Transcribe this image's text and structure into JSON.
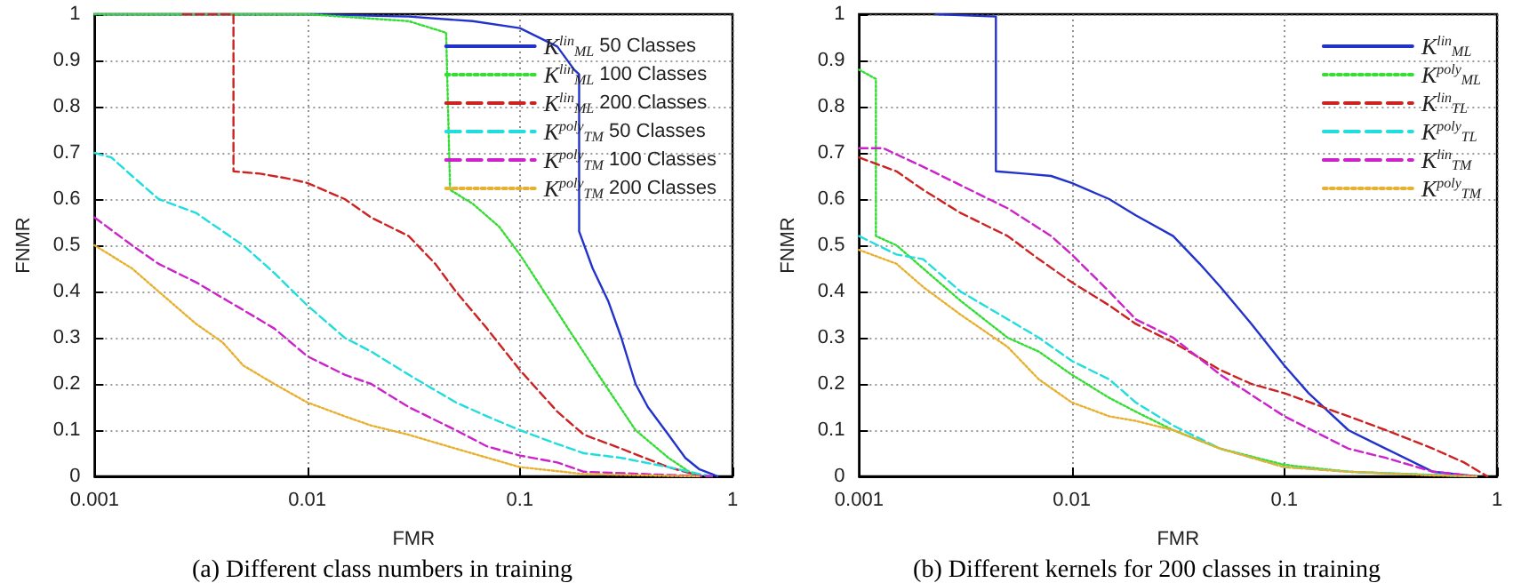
{
  "chart_data": [
    {
      "type": "line",
      "xlabel": "FMR",
      "ylabel": "FNMR",
      "annotations": [
        "(a) Different class numbers in training"
      ],
      "log": "x",
      "grid": true,
      "legend": "top right",
      "marker": "none",
      "xlim": [
        0.001,
        1
      ],
      "xticks": [
        0.001,
        0.01,
        0.1,
        1
      ],
      "ylim": [
        0,
        1
      ],
      "yticks": [
        0,
        0.1,
        0.2,
        0.3,
        0.4,
        0.5,
        0.6,
        0.7,
        0.8,
        0.9,
        1
      ],
      "series": [
        {
          "name": "K$^{lin}$$_{ML}$ 50 Classes",
          "color": "#2233cc",
          "line_style": "solid",
          "x": [
            0.001,
            0.01,
            0.03,
            0.06,
            0.1,
            0.15,
            0.18,
            0.19,
            0.19,
            0.22,
            0.26,
            0.3,
            0.35,
            0.4,
            0.5,
            0.6,
            0.7,
            0.8,
            0.85
          ],
          "values": [
            1,
            1,
            0.995,
            0.985,
            0.97,
            0.93,
            0.88,
            0.87,
            0.53,
            0.45,
            0.38,
            0.3,
            0.2,
            0.15,
            0.09,
            0.04,
            0.015,
            0.005,
            0
          ]
        },
        {
          "name": "K$^{lin}$$_{ML}$ 100 Classes",
          "color": "#33dd33",
          "line_style": "dotted",
          "x": [
            0.001,
            0.01,
            0.03,
            0.045,
            0.047,
            0.06,
            0.08,
            0.1,
            0.13,
            0.18,
            0.25,
            0.35,
            0.5,
            0.65,
            0.7
          ],
          "values": [
            1,
            1,
            0.985,
            0.96,
            0.62,
            0.59,
            0.54,
            0.48,
            0.4,
            0.3,
            0.2,
            0.1,
            0.04,
            0.005,
            0
          ]
        },
        {
          "name": "K$^{lin}$$_{ML}$ 200 Classes",
          "color": "#cc2222",
          "line_style": "dashed",
          "x": [
            0.0026,
            0.0045,
            0.0045,
            0.006,
            0.008,
            0.01,
            0.015,
            0.02,
            0.03,
            0.04,
            0.05,
            0.07,
            0.1,
            0.15,
            0.2,
            0.3,
            0.5,
            0.65,
            0.7
          ],
          "values": [
            1,
            1,
            0.66,
            0.655,
            0.645,
            0.635,
            0.6,
            0.56,
            0.52,
            0.46,
            0.4,
            0.32,
            0.23,
            0.14,
            0.09,
            0.06,
            0.02,
            0.005,
            0
          ]
        },
        {
          "name": "K$^{poly}$$_{TM}$ 50 Classes",
          "color": "#22dddd",
          "line_style": "dashed",
          "x": [
            0.001,
            0.0012,
            0.0015,
            0.002,
            0.003,
            0.005,
            0.007,
            0.01,
            0.015,
            0.02,
            0.03,
            0.05,
            0.07,
            0.1,
            0.15,
            0.2,
            0.3,
            0.5,
            0.7,
            0.8
          ],
          "values": [
            0.7,
            0.69,
            0.65,
            0.6,
            0.57,
            0.5,
            0.44,
            0.37,
            0.3,
            0.27,
            0.22,
            0.16,
            0.13,
            0.1,
            0.07,
            0.05,
            0.04,
            0.02,
            0.005,
            0
          ]
        },
        {
          "name": "K$^{poly}$$_{TM}$ 100 Classes",
          "color": "#cc22cc",
          "line_style": "dashed",
          "x": [
            0.001,
            0.0015,
            0.002,
            0.003,
            0.005,
            0.007,
            0.01,
            0.015,
            0.02,
            0.03,
            0.05,
            0.07,
            0.1,
            0.15,
            0.2,
            0.5,
            0.8
          ],
          "values": [
            0.56,
            0.5,
            0.46,
            0.42,
            0.36,
            0.32,
            0.26,
            0.22,
            0.2,
            0.15,
            0.1,
            0.065,
            0.045,
            0.03,
            0.01,
            0.003,
            0
          ]
        },
        {
          "name": "K$^{poly}$$_{TM}$ 200 Classes",
          "color": "#e8b030",
          "line_style": "dotted",
          "x": [
            0.001,
            0.0015,
            0.002,
            0.003,
            0.004,
            0.005,
            0.007,
            0.01,
            0.015,
            0.02,
            0.03,
            0.05,
            0.1,
            0.2,
            0.5,
            0.7
          ],
          "values": [
            0.5,
            0.45,
            0.4,
            0.33,
            0.29,
            0.24,
            0.2,
            0.16,
            0.13,
            0.11,
            0.09,
            0.06,
            0.02,
            0.005,
            0.001,
            0
          ]
        }
      ]
    },
    {
      "type": "line",
      "xlabel": "FMR",
      "ylabel": "FNMR",
      "annotations": [
        "(b) Different kernels for 200 classes in training"
      ],
      "log": "x",
      "grid": true,
      "legend": "top right",
      "marker": "none",
      "xlim": [
        0.001,
        1
      ],
      "xticks": [
        0.001,
        0.01,
        0.1,
        1
      ],
      "ylim": [
        0,
        1
      ],
      "yticks": [
        0,
        0.1,
        0.2,
        0.3,
        0.4,
        0.5,
        0.6,
        0.7,
        0.8,
        0.9,
        1
      ],
      "series": [
        {
          "name": "K$^{lin}$$_{ML}$",
          "color": "#2233cc",
          "line_style": "solid",
          "x": [
            0.0023,
            0.0044,
            0.0044,
            0.006,
            0.008,
            0.01,
            0.015,
            0.02,
            0.03,
            0.04,
            0.05,
            0.07,
            0.1,
            0.13,
            0.2,
            0.3,
            0.5,
            0.8
          ],
          "values": [
            1,
            0.995,
            0.66,
            0.655,
            0.65,
            0.635,
            0.6,
            0.565,
            0.52,
            0.46,
            0.41,
            0.33,
            0.24,
            0.18,
            0.1,
            0.06,
            0.01,
            0
          ]
        },
        {
          "name": "K$^{poly}$$_{ML}$",
          "color": "#33dd33",
          "line_style": "dotted",
          "x": [
            0.001,
            0.0012,
            0.0012,
            0.0015,
            0.002,
            0.003,
            0.005,
            0.007,
            0.01,
            0.015,
            0.02,
            0.03,
            0.05,
            0.1,
            0.2,
            0.5,
            0.8
          ],
          "values": [
            0.88,
            0.86,
            0.52,
            0.5,
            0.45,
            0.38,
            0.3,
            0.27,
            0.22,
            0.17,
            0.14,
            0.1,
            0.06,
            0.025,
            0.01,
            0.003,
            0
          ]
        },
        {
          "name": "K$^{lin}$$_{TL}$",
          "color": "#cc2222",
          "line_style": "dashed",
          "x": [
            0.001,
            0.0015,
            0.002,
            0.003,
            0.005,
            0.007,
            0.01,
            0.015,
            0.02,
            0.03,
            0.05,
            0.07,
            0.1,
            0.2,
            0.3,
            0.5,
            0.7,
            0.9
          ],
          "values": [
            0.69,
            0.66,
            0.62,
            0.57,
            0.52,
            0.47,
            0.42,
            0.37,
            0.33,
            0.29,
            0.23,
            0.2,
            0.18,
            0.13,
            0.1,
            0.06,
            0.03,
            0
          ]
        },
        {
          "name": "K$^{poly}$$_{TL}$",
          "color": "#22dddd",
          "line_style": "dashed",
          "x": [
            0.001,
            0.0015,
            0.002,
            0.003,
            0.005,
            0.007,
            0.01,
            0.015,
            0.02,
            0.03,
            0.05,
            0.1,
            0.2,
            0.5,
            0.8
          ],
          "values": [
            0.52,
            0.48,
            0.47,
            0.4,
            0.34,
            0.3,
            0.25,
            0.21,
            0.16,
            0.11,
            0.06,
            0.02,
            0.01,
            0.003,
            0
          ]
        },
        {
          "name": "K$^{lin}$$_{TM}$",
          "color": "#cc22cc",
          "line_style": "dashed",
          "x": [
            0.001,
            0.0013,
            0.002,
            0.003,
            0.005,
            0.008,
            0.01,
            0.015,
            0.02,
            0.03,
            0.05,
            0.1,
            0.2,
            0.3,
            0.5,
            0.8
          ],
          "values": [
            0.71,
            0.71,
            0.67,
            0.63,
            0.58,
            0.52,
            0.48,
            0.4,
            0.34,
            0.3,
            0.22,
            0.13,
            0.06,
            0.04,
            0.01,
            0
          ]
        },
        {
          "name": "K$^{poly}$$_{TM}$",
          "color": "#e8b030",
          "line_style": "dotted",
          "x": [
            0.001,
            0.0015,
            0.002,
            0.003,
            0.005,
            0.007,
            0.01,
            0.015,
            0.02,
            0.03,
            0.05,
            0.1,
            0.2,
            0.5,
            0.8
          ],
          "values": [
            0.49,
            0.46,
            0.41,
            0.35,
            0.28,
            0.21,
            0.16,
            0.13,
            0.12,
            0.1,
            0.06,
            0.02,
            0.01,
            0.002,
            0
          ]
        }
      ]
    }
  ]
}
